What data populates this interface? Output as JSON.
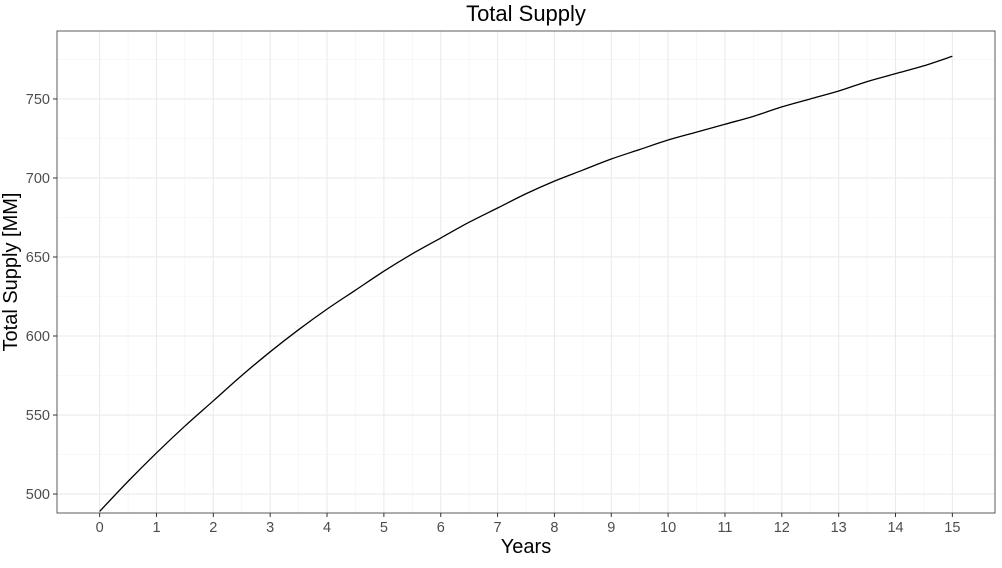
{
  "chart_data": {
    "type": "line",
    "title": "Total Supply",
    "xlabel": "Years",
    "ylabel": "Total Supply [MM]",
    "xlim": [
      -0.75,
      15.75
    ],
    "ylim": [
      488,
      793
    ],
    "x_ticks": [
      0,
      1,
      2,
      3,
      4,
      5,
      6,
      7,
      8,
      9,
      10,
      11,
      12,
      13,
      14,
      15
    ],
    "y_ticks": [
      500,
      550,
      600,
      650,
      700,
      750
    ],
    "grid": true,
    "legend": "none",
    "series": [
      {
        "color": "#000000",
        "x": [
          0,
          0.5,
          1,
          1.5,
          2,
          2.5,
          3,
          3.5,
          4,
          4.5,
          5,
          5.5,
          6,
          6.5,
          7,
          7.5,
          8,
          8.5,
          9,
          9.5,
          10,
          10.5,
          11,
          11.5,
          12,
          12.5,
          13,
          13.5,
          14,
          14.5,
          15
        ],
        "values": [
          489,
          508,
          526,
          543,
          559,
          575,
          590,
          604,
          617,
          629,
          641,
          652,
          662,
          672,
          681,
          690,
          698,
          705,
          712,
          718,
          724,
          729,
          734,
          739,
          745,
          750,
          755,
          761,
          766,
          771,
          777
        ]
      }
    ]
  }
}
